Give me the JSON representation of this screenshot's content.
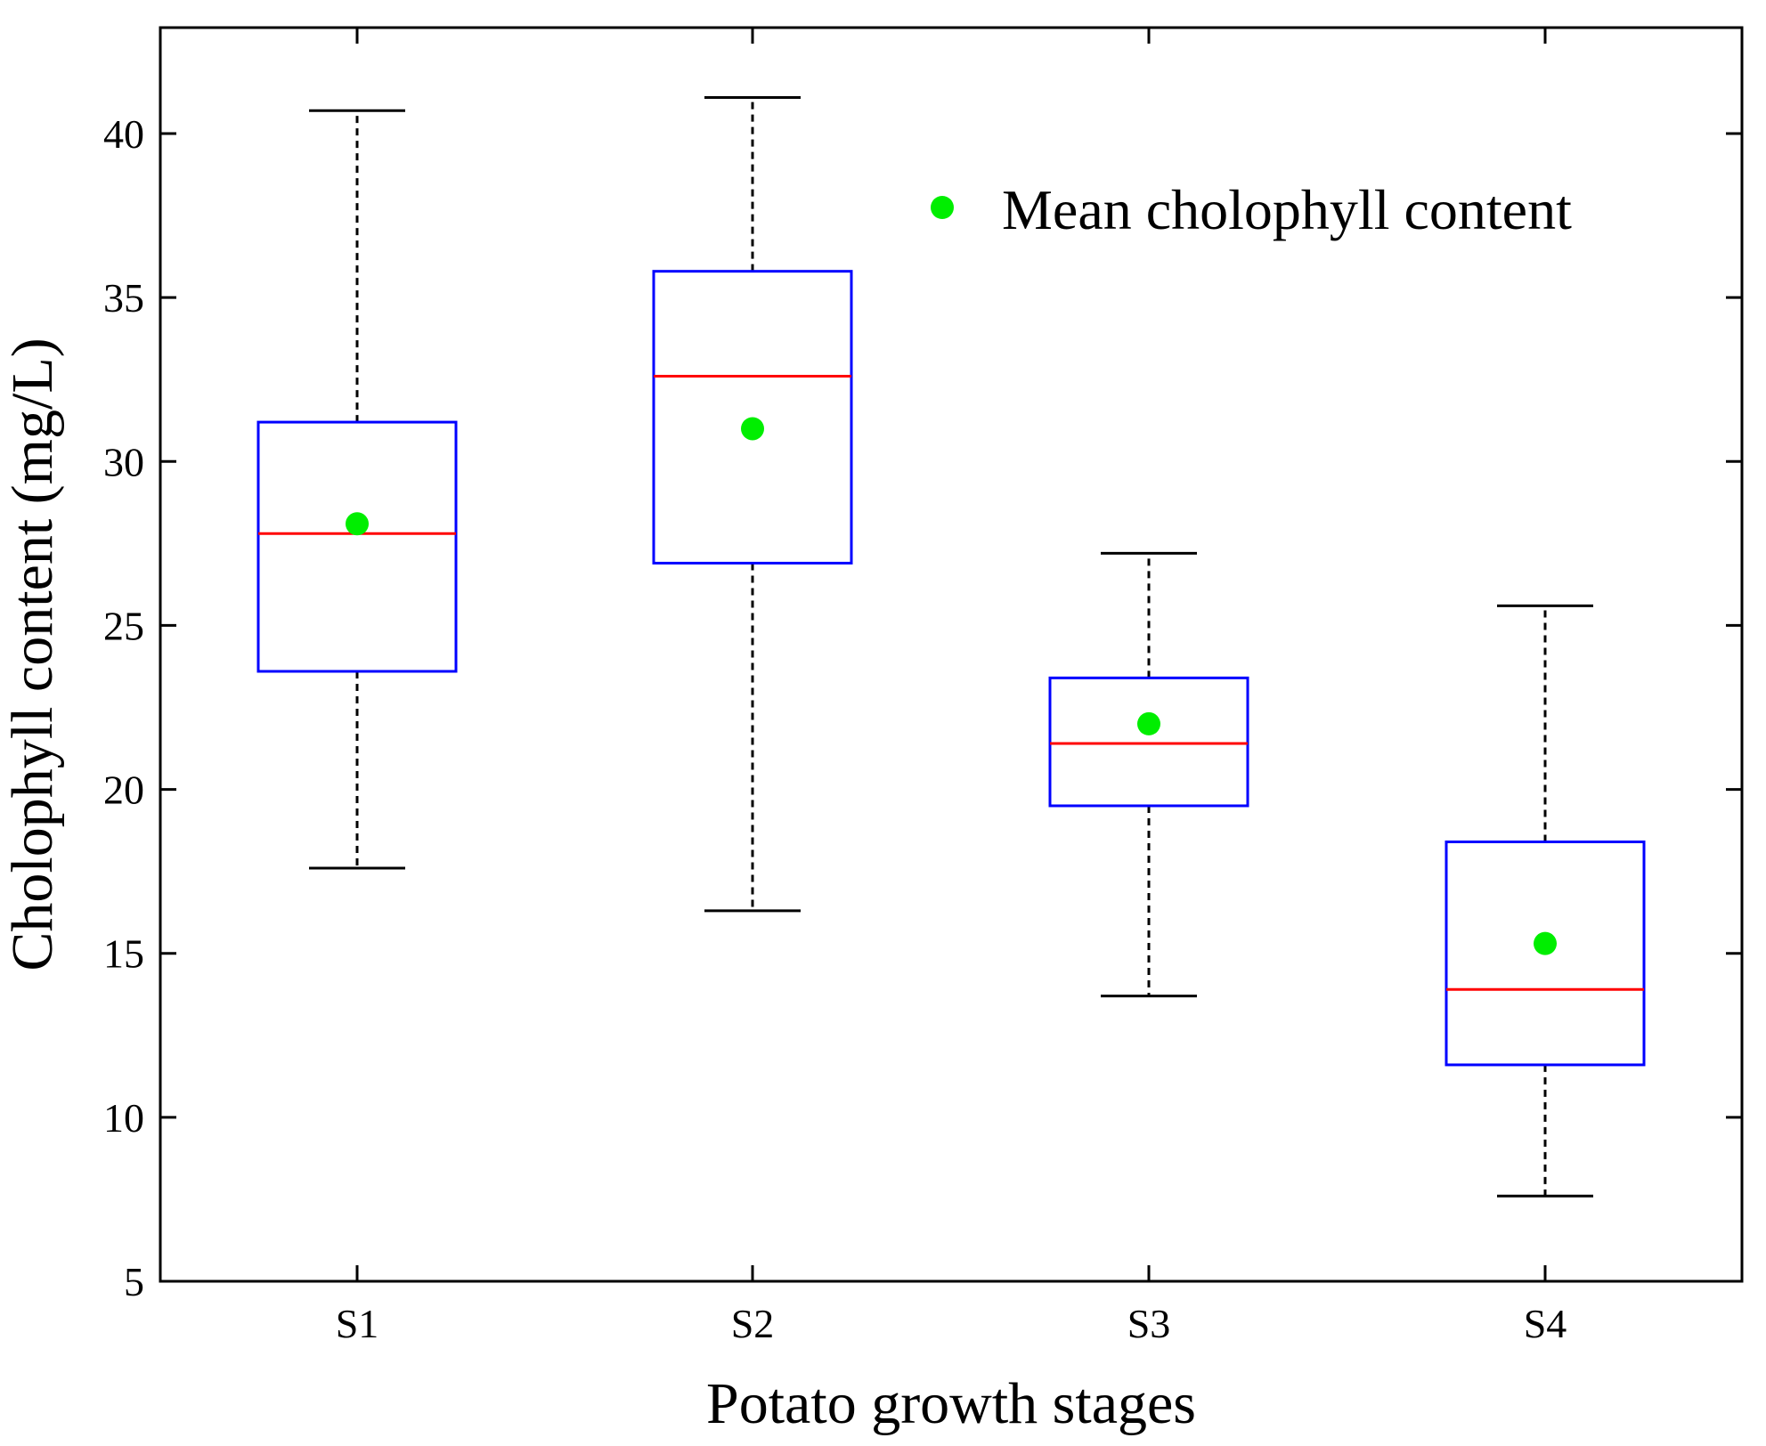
{
  "chart_data": {
    "type": "box",
    "title": "",
    "xlabel": "Potato growth stages",
    "ylabel": "Cholophyll content (mg/L)",
    "ylim": [
      5,
      42.5
    ],
    "yticks": [
      5,
      10,
      15,
      20,
      25,
      30,
      35,
      40
    ],
    "categories": [
      "S1",
      "S2",
      "S3",
      "S4"
    ],
    "boxes": [
      {
        "category": "S1",
        "whisker_low": 17.6,
        "q1": 23.6,
        "median": 27.8,
        "q3": 31.2,
        "whisker_high": 40.7,
        "mean": 28.1
      },
      {
        "category": "S2",
        "whisker_low": 16.3,
        "q1": 26.9,
        "median": 32.6,
        "q3": 35.8,
        "whisker_high": 41.1,
        "mean": 31.0
      },
      {
        "category": "S3",
        "whisker_low": 13.7,
        "q1": 19.5,
        "median": 21.4,
        "q3": 23.4,
        "whisker_high": 27.2,
        "mean": 22.0
      },
      {
        "category": "S4",
        "whisker_low": 7.6,
        "q1": 11.6,
        "median": 13.9,
        "q3": 18.4,
        "whisker_high": 25.6,
        "mean": 15.3
      }
    ],
    "legend": {
      "label": "Mean cholophyll content",
      "position": "top-right"
    },
    "colors": {
      "box": "#0000ff",
      "median": "#ff0000",
      "mean": "#00ee00",
      "whisker": "#000000"
    }
  }
}
